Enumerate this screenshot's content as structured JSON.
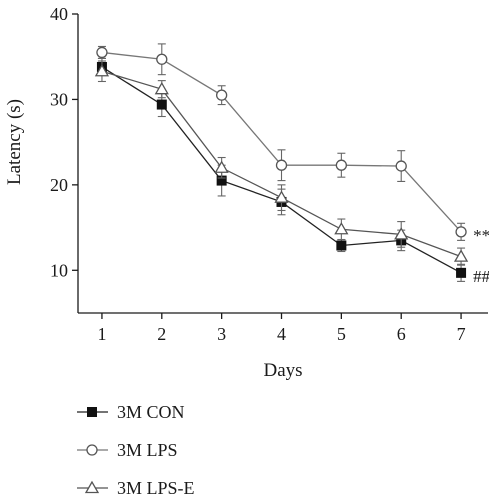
{
  "chart_data": {
    "type": "line",
    "xlabel": "Days",
    "ylabel": "Latency (s)",
    "x": [
      1,
      2,
      3,
      4,
      5,
      6,
      7
    ],
    "xlim": [
      0.6,
      7.45
    ],
    "ylim": [
      5,
      40
    ],
    "yticks": [
      10,
      20,
      30,
      40
    ],
    "grid": false,
    "legend_position": "bottom-left",
    "series": [
      {
        "name": "3M CON",
        "marker": "filled-square",
        "values": [
          33.8,
          29.4,
          20.5,
          18.0,
          12.9,
          13.5,
          9.7
        ],
        "errors": [
          1.0,
          1.4,
          1.8,
          1.5,
          0.7,
          1.2,
          1.0
        ],
        "annotation": "##"
      },
      {
        "name": "3M LPS",
        "marker": "open-circle",
        "values": [
          35.5,
          34.7,
          30.5,
          22.3,
          22.3,
          22.2,
          14.5
        ],
        "errors": [
          0.7,
          1.8,
          1.1,
          1.8,
          1.4,
          1.8,
          1.0
        ],
        "annotation": "**"
      },
      {
        "name": "3M LPS-E",
        "marker": "open-triangle",
        "values": [
          33.3,
          31.2,
          22.0,
          18.5,
          14.8,
          14.2,
          11.6
        ],
        "errors": [
          1.2,
          1.0,
          1.2,
          1.5,
          1.2,
          1.5,
          1.0
        ],
        "annotation": ""
      }
    ]
  }
}
